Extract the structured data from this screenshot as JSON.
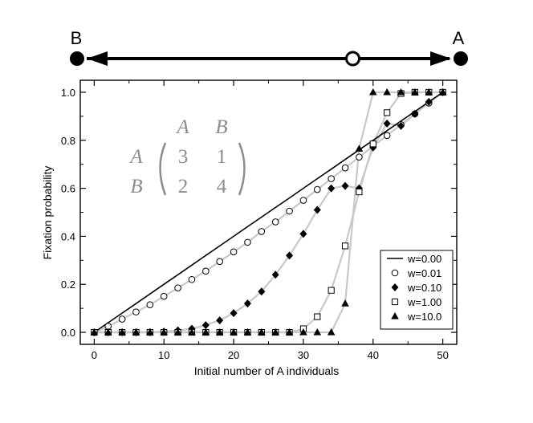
{
  "chart_data": {
    "type": "scatter",
    "xlabel": "Initial number of A individuals",
    "ylabel": "Fixation probability",
    "xlim": [
      -2,
      52
    ],
    "ylim": [
      -0.05,
      1.05
    ],
    "xticks": [
      0,
      10,
      20,
      30,
      40,
      50
    ],
    "yticks": [
      0.0,
      0.2,
      0.4,
      0.6,
      0.8,
      1.0
    ],
    "xtick_labels": [
      "0",
      "10",
      "20",
      "30",
      "40",
      "50"
    ],
    "ytick_labels": [
      "0.0",
      "0.2",
      "0.4",
      "0.6",
      "0.8",
      "1.0"
    ],
    "grid": false,
    "legend_position": "bottom-right",
    "x": [
      0,
      2,
      4,
      6,
      8,
      10,
      12,
      14,
      16,
      18,
      20,
      22,
      24,
      26,
      28,
      30,
      32,
      34,
      36,
      38,
      40,
      42,
      44,
      46,
      48,
      50
    ],
    "series": [
      {
        "name": "w=0.00",
        "marker": "line",
        "values": [
          0.0,
          0.04,
          0.08,
          0.12,
          0.16,
          0.2,
          0.24,
          0.28,
          0.32,
          0.36,
          0.4,
          0.44,
          0.48,
          0.52,
          0.56,
          0.6,
          0.64,
          0.68,
          0.72,
          0.76,
          0.8,
          0.84,
          0.88,
          0.92,
          0.96,
          1.0
        ]
      },
      {
        "name": "w=0.01",
        "marker": "open-circle",
        "values": [
          0.0,
          0.025,
          0.055,
          0.085,
          0.115,
          0.15,
          0.185,
          0.22,
          0.255,
          0.295,
          0.335,
          0.375,
          0.42,
          0.46,
          0.505,
          0.55,
          0.595,
          0.64,
          0.685,
          0.73,
          0.775,
          0.82,
          0.865,
          0.91,
          0.955,
          1.0
        ]
      },
      {
        "name": "w=0.10",
        "marker": "filled-diamond",
        "values": [
          0.0,
          0.0,
          0.0,
          0.0,
          0.0,
          0.003,
          0.008,
          0.015,
          0.03,
          0.05,
          0.08,
          0.12,
          0.17,
          0.24,
          0.32,
          0.41,
          0.51,
          0.6,
          0.61,
          0.6,
          0.77,
          0.87,
          0.86,
          0.91,
          0.96,
          1.0
        ]
      },
      {
        "name": "w=1.00",
        "marker": "open-square",
        "values": [
          0.0,
          0.0,
          0.0,
          0.0,
          0.0,
          0.0,
          0.0,
          0.0,
          0.0,
          0.0,
          0.0,
          0.0,
          0.0,
          0.0,
          0.0,
          0.015,
          0.065,
          0.175,
          0.36,
          0.585,
          0.785,
          0.915,
          0.995,
          1.0,
          1.0,
          1.0
        ]
      },
      {
        "name": "w=10.0",
        "marker": "filled-triangle",
        "values": [
          0.0,
          0.0,
          0.0,
          0.0,
          0.0,
          0.0,
          0.0,
          0.0,
          0.0,
          0.0,
          0.0,
          0.0,
          0.0,
          0.0,
          0.0,
          0.0,
          0.0,
          0.0,
          0.12,
          0.765,
          1.0,
          1.0,
          1.0,
          1.0,
          1.0,
          1.0
        ]
      }
    ],
    "annotations": {
      "matrix_col_headers": [
        "A",
        "B"
      ],
      "matrix_row_headers": [
        "A",
        "B"
      ],
      "matrix_values": [
        [
          "3",
          "1"
        ],
        [
          "2",
          "4"
        ]
      ]
    }
  },
  "arrow_diagram": {
    "left_label": "B",
    "right_label": "A",
    "unstable_point_fraction": 0.75
  },
  "colors": {
    "axis": "#000000",
    "marker": "#000000",
    "fit_curve": "#c8c8c8",
    "matrix_text": "#8c8c8c"
  }
}
